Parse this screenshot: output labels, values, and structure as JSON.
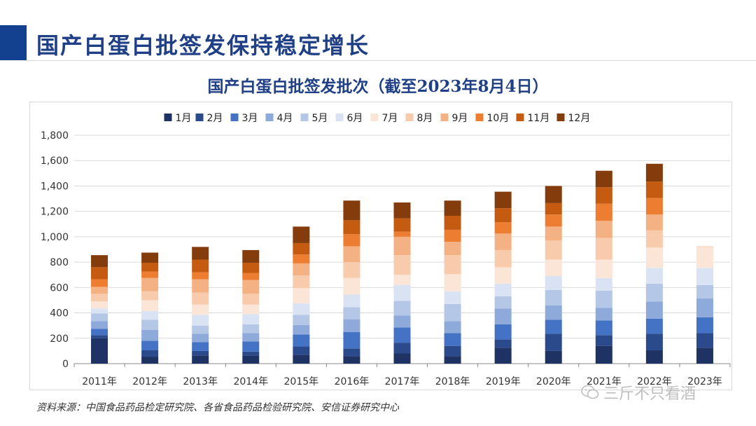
{
  "header": {
    "title": "国产白蛋白批签发保持稳定增长"
  },
  "source": "资料来源：中国食品药品检定研究院、各省食品药品检验研究院、安信证券研究中心",
  "watermark": "三斤不只看酒",
  "colors": {
    "accent": "#13408f",
    "months": [
      "#1f3264",
      "#2a4a8c",
      "#4472c4",
      "#8eaadb",
      "#b4c7e7",
      "#dae3f3",
      "#fbe5d6",
      "#f8cbad",
      "#f4b183",
      "#ed7d31",
      "#c55a11",
      "#843c0c"
    ]
  },
  "chart_data": {
    "type": "bar",
    "stacked": true,
    "title": "国产白蛋白批签发批次（截至2023年8月4日）",
    "xlabel": "",
    "ylabel": "",
    "ylim": [
      0,
      1800
    ],
    "yticks": [
      "0",
      "200",
      "400",
      "600",
      "800",
      "1,000",
      "1,200",
      "1,400",
      "1,600",
      "1,800"
    ],
    "grid": true,
    "legend_position": "top",
    "categories": [
      "2011年",
      "2012年",
      "2013年",
      "2014年",
      "2015年",
      "2016年",
      "2017年",
      "2018年",
      "2019年",
      "2020年",
      "2021年",
      "2022年",
      "2023年"
    ],
    "series": [
      {
        "name": "1月",
        "values": [
          200,
          55,
          65,
          65,
          70,
          60,
          80,
          60,
          125,
          100,
          140,
          105,
          125
        ]
      },
      {
        "name": "2月",
        "values": [
          25,
          50,
          35,
          30,
          65,
          60,
          85,
          80,
          65,
          135,
          85,
          130,
          115
        ]
      },
      {
        "name": "3月",
        "values": [
          50,
          75,
          70,
          80,
          95,
          130,
          120,
          100,
          120,
          110,
          115,
          120,
          125
        ]
      },
      {
        "name": "4月",
        "values": [
          60,
          85,
          65,
          65,
          75,
          100,
          95,
          95,
          125,
          115,
          100,
          135,
          150
        ]
      },
      {
        "name": "5月",
        "values": [
          60,
          80,
          65,
          70,
          80,
          95,
          115,
          135,
          95,
          120,
          135,
          140,
          105
        ]
      },
      {
        "name": "6月",
        "values": [
          40,
          70,
          85,
          80,
          90,
          100,
          125,
          100,
          100,
          110,
          100,
          125,
          135
        ]
      },
      {
        "name": "7月",
        "values": [
          55,
          85,
          80,
          75,
          120,
          130,
          80,
          135,
          130,
          130,
          145,
          160,
          165
        ]
      },
      {
        "name": "8月",
        "values": [
          60,
          70,
          95,
          85,
          100,
          125,
          155,
          150,
          135,
          150,
          170,
          135,
          5
        ]
      },
      {
        "name": "9月",
        "values": [
          55,
          105,
          105,
          110,
          95,
          125,
          145,
          105,
          130,
          110,
          135,
          125,
          0
        ]
      },
      {
        "name": "10月",
        "values": [
          60,
          50,
          55,
          55,
          70,
          95,
          40,
          95,
          90,
          95,
          135,
          130,
          0
        ]
      },
      {
        "name": "11月",
        "values": [
          95,
          70,
          100,
          80,
          90,
          110,
          105,
          110,
          110,
          90,
          130,
          130,
          0
        ]
      },
      {
        "name": "12月",
        "values": [
          95,
          80,
          100,
          100,
          130,
          155,
          125,
          120,
          130,
          135,
          130,
          140,
          0
        ]
      }
    ]
  }
}
